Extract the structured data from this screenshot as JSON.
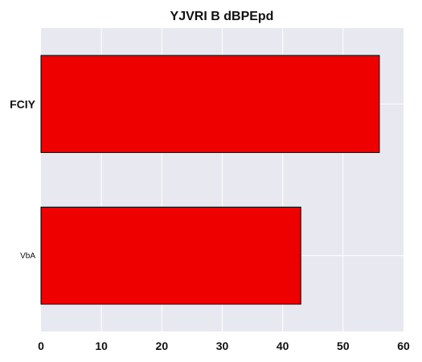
{
  "chart_data": {
    "type": "bar",
    "orientation": "horizontal",
    "title": "YJVRI B dBPEpd",
    "categories": [
      "FCIY",
      "VbA"
    ],
    "values": [
      56,
      43
    ],
    "xlim": [
      0,
      60
    ],
    "x_ticks": [
      "0",
      "10",
      "20",
      "30",
      "40",
      "50",
      "60"
    ],
    "xlabel": "",
    "ylabel": "",
    "grid": true,
    "colors": {
      "bar": "#ee0000",
      "bar_edge": "#000000",
      "plot_bg": "#e8e8f0",
      "grid": "#ffffff",
      "text": "#111111"
    }
  }
}
